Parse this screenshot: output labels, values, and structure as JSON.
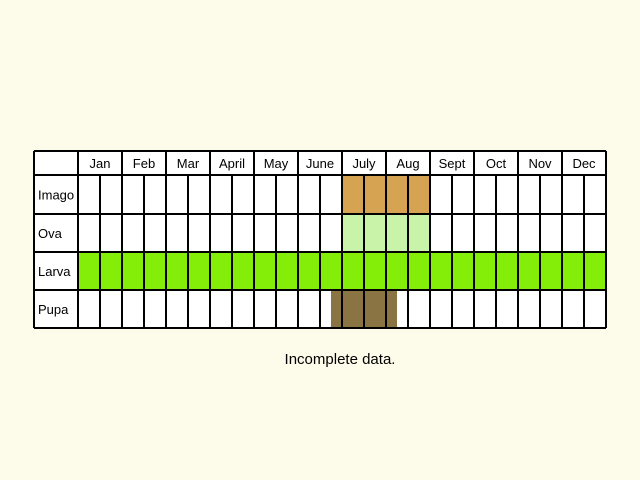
{
  "chart_data": {
    "type": "table",
    "months": [
      "Jan",
      "Feb",
      "Mar",
      "April",
      "May",
      "June",
      "July",
      "Aug",
      "Sept",
      "Oct",
      "Nov",
      "Dec"
    ],
    "cells_per_month": 2,
    "grid_on": true,
    "rows": [
      {
        "name": "Imago",
        "color": "#d6a353",
        "periods": [
          [
            12,
            16
          ]
        ]
      },
      {
        "name": "Ova",
        "color": "#c9f3a8",
        "periods": [
          [
            12,
            16
          ]
        ]
      },
      {
        "name": "Larva",
        "color": "#84ee08",
        "periods": [
          [
            0,
            24
          ]
        ]
      },
      {
        "name": "Pupa",
        "color": "#8a7444",
        "periods": [
          [
            11.5,
            14.5
          ]
        ]
      }
    ],
    "caption": "Incomplete data."
  },
  "colors": {
    "background": "#fdfbe9",
    "cell_background": "#ffffff",
    "grid_line": "#000000"
  }
}
